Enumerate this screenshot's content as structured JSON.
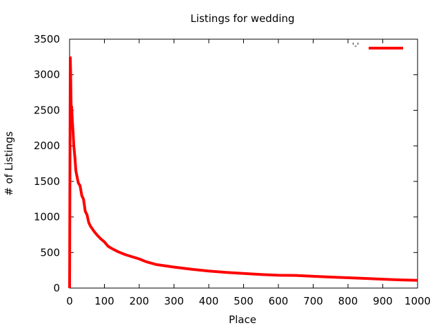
{
  "chart_data": {
    "type": "line",
    "title": "Listings for wedding",
    "xlabel": "Place",
    "ylabel": "# of Listings",
    "xlim": [
      0,
      1000
    ],
    "ylim": [
      0,
      3500
    ],
    "xticks": [
      0,
      100,
      200,
      300,
      400,
      500,
      600,
      700,
      800,
      900,
      1000
    ],
    "yticks": [
      0,
      500,
      1000,
      1500,
      2000,
      2500,
      3000,
      3500
    ],
    "grid": false,
    "legend_placement": "top-right",
    "series": [
      {
        "name": "'-'",
        "color": "#ff0000",
        "x": [
          0,
          1,
          2,
          3,
          4,
          5,
          6,
          8,
          10,
          12,
          15,
          18,
          20,
          25,
          30,
          35,
          40,
          45,
          50,
          55,
          60,
          70,
          80,
          90,
          100,
          110,
          120,
          140,
          160,
          180,
          200,
          220,
          250,
          300,
          350,
          400,
          450,
          500,
          550,
          600,
          650,
          700,
          750,
          800,
          850,
          900,
          950,
          1000
        ],
        "values": [
          0,
          1650,
          3240,
          3050,
          2700,
          2450,
          2550,
          2350,
          2200,
          2000,
          1850,
          1650,
          1600,
          1480,
          1440,
          1300,
          1250,
          1080,
          1030,
          920,
          870,
          800,
          740,
          690,
          650,
          590,
          560,
          510,
          470,
          440,
          410,
          370,
          330,
          295,
          265,
          240,
          220,
          205,
          190,
          180,
          178,
          165,
          155,
          145,
          135,
          125,
          115,
          108
        ]
      }
    ]
  }
}
